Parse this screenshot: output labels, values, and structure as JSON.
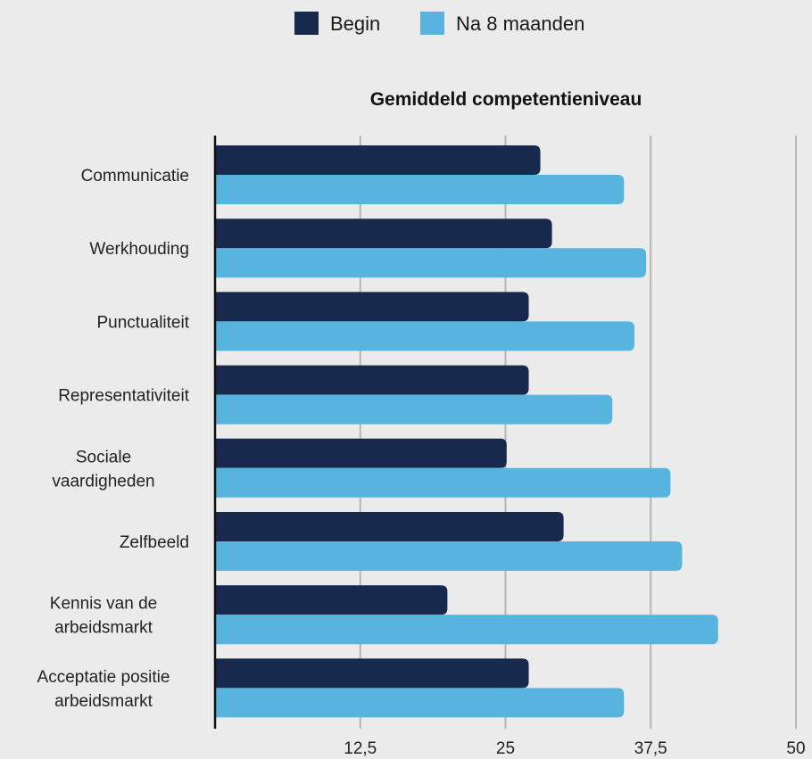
{
  "chart_data": {
    "type": "bar",
    "orientation": "horizontal",
    "title": "Gemiddeld competentieniveau",
    "categories": [
      [
        "Communicatie"
      ],
      [
        "Werkhouding"
      ],
      [
        "Punctualiteit"
      ],
      [
        "Representativiteit"
      ],
      [
        "Sociale",
        "vaardigheden"
      ],
      [
        "Zelfbeeld"
      ],
      [
        "Kennis van de",
        "arbeidsmarkt"
      ],
      [
        "Acceptatie positie",
        "arbeidsmarkt"
      ]
    ],
    "series": [
      {
        "name": "Begin",
        "color": "#172a4e",
        "values": [
          28.0,
          29.0,
          27.0,
          27.0,
          25.1,
          30.0,
          20.0,
          27.0
        ]
      },
      {
        "name": "Na 8 maanden",
        "color": "#57b4de",
        "values": [
          35.2,
          37.1,
          36.1,
          34.2,
          39.2,
          40.2,
          43.3,
          35.2
        ]
      }
    ],
    "xlim": [
      0,
      50
    ],
    "xticks": [
      "12,5",
      "25",
      "37,5",
      "50"
    ],
    "xtick_values": [
      12.5,
      25,
      37.5,
      50
    ],
    "grid": true,
    "legend_position": "top-center"
  }
}
